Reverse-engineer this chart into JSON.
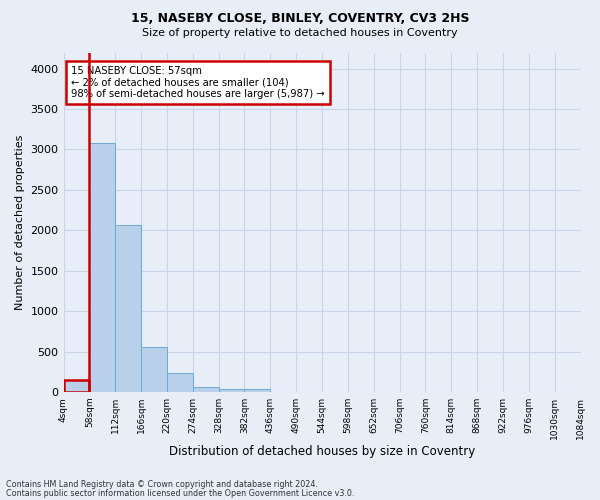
{
  "title1": "15, NASEBY CLOSE, BINLEY, COVENTRY, CV3 2HS",
  "title2": "Size of property relative to detached houses in Coventry",
  "xlabel": "Distribution of detached houses by size in Coventry",
  "ylabel": "Number of detached properties",
  "bar_color": "#b8d0ea",
  "bar_edge_color": "#6aaad4",
  "highlight_color": "#cc0000",
  "tick_labels": [
    "4sqm",
    "58sqm",
    "112sqm",
    "166sqm",
    "220sqm",
    "274sqm",
    "328sqm",
    "382sqm",
    "436sqm",
    "490sqm",
    "544sqm",
    "598sqm",
    "652sqm",
    "706sqm",
    "760sqm",
    "814sqm",
    "868sqm",
    "922sqm",
    "976sqm",
    "1030sqm",
    "1084sqm"
  ],
  "bar_values": [
    150,
    3080,
    2070,
    560,
    235,
    65,
    40,
    40,
    0,
    0,
    0,
    0,
    0,
    0,
    0,
    0,
    0,
    0,
    0,
    0
  ],
  "ylim": [
    0,
    4200
  ],
  "yticks": [
    0,
    500,
    1000,
    1500,
    2000,
    2500,
    3000,
    3500,
    4000
  ],
  "annotation_title": "15 NASEBY CLOSE: 57sqm",
  "annotation_line1": "← 2% of detached houses are smaller (104)",
  "annotation_line2": "98% of semi-detached houses are larger (5,987) →",
  "footnote1": "Contains HM Land Registry data © Crown copyright and database right 2024.",
  "footnote2": "Contains public sector information licensed under the Open Government Licence v3.0.",
  "background_color": "#e8eef8",
  "grid_color": "#c8d4e8"
}
